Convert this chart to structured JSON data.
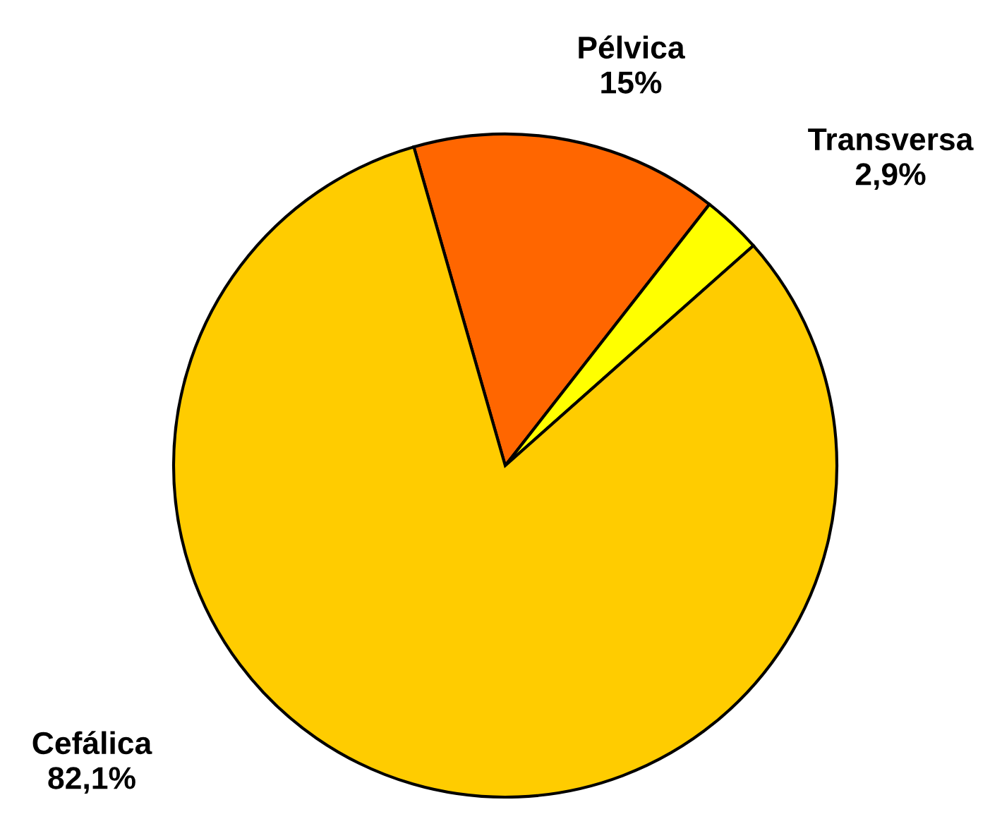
{
  "chart_data": {
    "type": "pie",
    "categories": [
      "Pélvica",
      "Transversa",
      "Cefálica"
    ],
    "values": [
      15,
      2.9,
      82.1
    ],
    "colors": [
      "#ff6600",
      "#ffff00",
      "#ffcc00"
    ],
    "value_labels": [
      "15%",
      "2,9%",
      "82,1%"
    ]
  }
}
